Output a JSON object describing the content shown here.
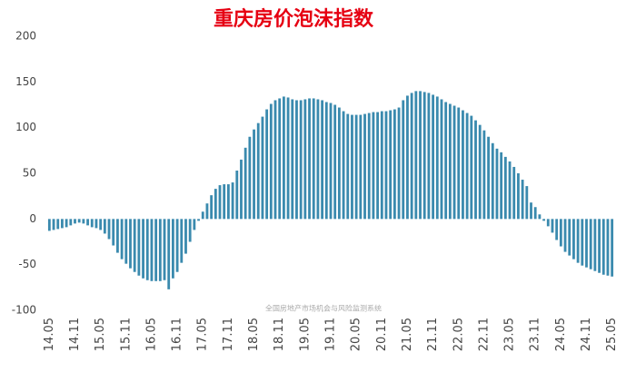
{
  "chart_data": {
    "type": "bar",
    "title": "重庆房价泡沫指数",
    "note": "全国房地产市场机会与风险监测系统",
    "categories": [
      "14.05",
      null,
      null,
      null,
      null,
      null,
      "14.11",
      null,
      null,
      null,
      null,
      null,
      "15.05",
      null,
      null,
      null,
      null,
      null,
      "15.11",
      null,
      null,
      null,
      null,
      null,
      "16.05",
      null,
      null,
      null,
      null,
      null,
      "16.11",
      null,
      null,
      null,
      null,
      null,
      "17.05",
      null,
      null,
      null,
      null,
      null,
      "17.11",
      null,
      null,
      null,
      null,
      null,
      "18.05",
      null,
      null,
      null,
      null,
      null,
      "18.11",
      null,
      null,
      null,
      null,
      null,
      "19.05",
      null,
      null,
      null,
      null,
      null,
      "19.11",
      null,
      null,
      null,
      null,
      null,
      "20.05",
      null,
      null,
      null,
      null,
      null,
      "20.11",
      null,
      null,
      null,
      null,
      null,
      "21.05",
      null,
      null,
      null,
      null,
      null,
      "21.11",
      null,
      null,
      null,
      null,
      null,
      "22.05",
      null,
      null,
      null,
      null,
      null,
      "22.11",
      null,
      null,
      null,
      null,
      null,
      "23.05",
      null,
      null,
      null,
      null,
      null,
      "23.11",
      null,
      null,
      null,
      null,
      null,
      "24.05",
      null,
      null,
      null,
      null,
      null,
      "24.11",
      null,
      null,
      null,
      null,
      null,
      "25.05"
    ],
    "values": [
      -13,
      -12,
      -11,
      -10,
      -9,
      -7,
      -5,
      -4,
      -5,
      -7,
      -9,
      -10,
      -12,
      -16,
      -22,
      -29,
      -37,
      -44,
      -49,
      -54,
      -58,
      -62,
      -65,
      -67,
      -68,
      -68,
      -68,
      -67,
      -77,
      -65,
      -58,
      -48,
      -38,
      -25,
      -12,
      -2,
      8,
      17,
      26,
      33,
      37,
      38,
      38,
      40,
      53,
      65,
      78,
      90,
      98,
      105,
      112,
      120,
      126,
      130,
      132,
      134,
      133,
      131,
      130,
      130,
      131,
      132,
      132,
      131,
      130,
      128,
      127,
      125,
      122,
      118,
      115,
      114,
      114,
      114,
      115,
      116,
      117,
      117,
      118,
      118,
      119,
      120,
      122,
      130,
      135,
      138,
      140,
      140,
      139,
      138,
      136,
      134,
      131,
      128,
      126,
      124,
      122,
      119,
      116,
      113,
      108,
      103,
      97,
      90,
      83,
      77,
      73,
      68,
      63,
      57,
      50,
      43,
      36,
      18,
      13,
      5,
      -2,
      -8,
      -15,
      -23,
      -30,
      -36,
      -40,
      -44,
      -48,
      -51,
      -53,
      -55,
      -57,
      -59,
      -61,
      -62,
      -63
    ],
    "color": "#3a8aae",
    "ylim": [
      -100,
      200
    ],
    "yticks": [
      -100,
      -50,
      0,
      50,
      100,
      150,
      200
    ],
    "grid": false
  }
}
